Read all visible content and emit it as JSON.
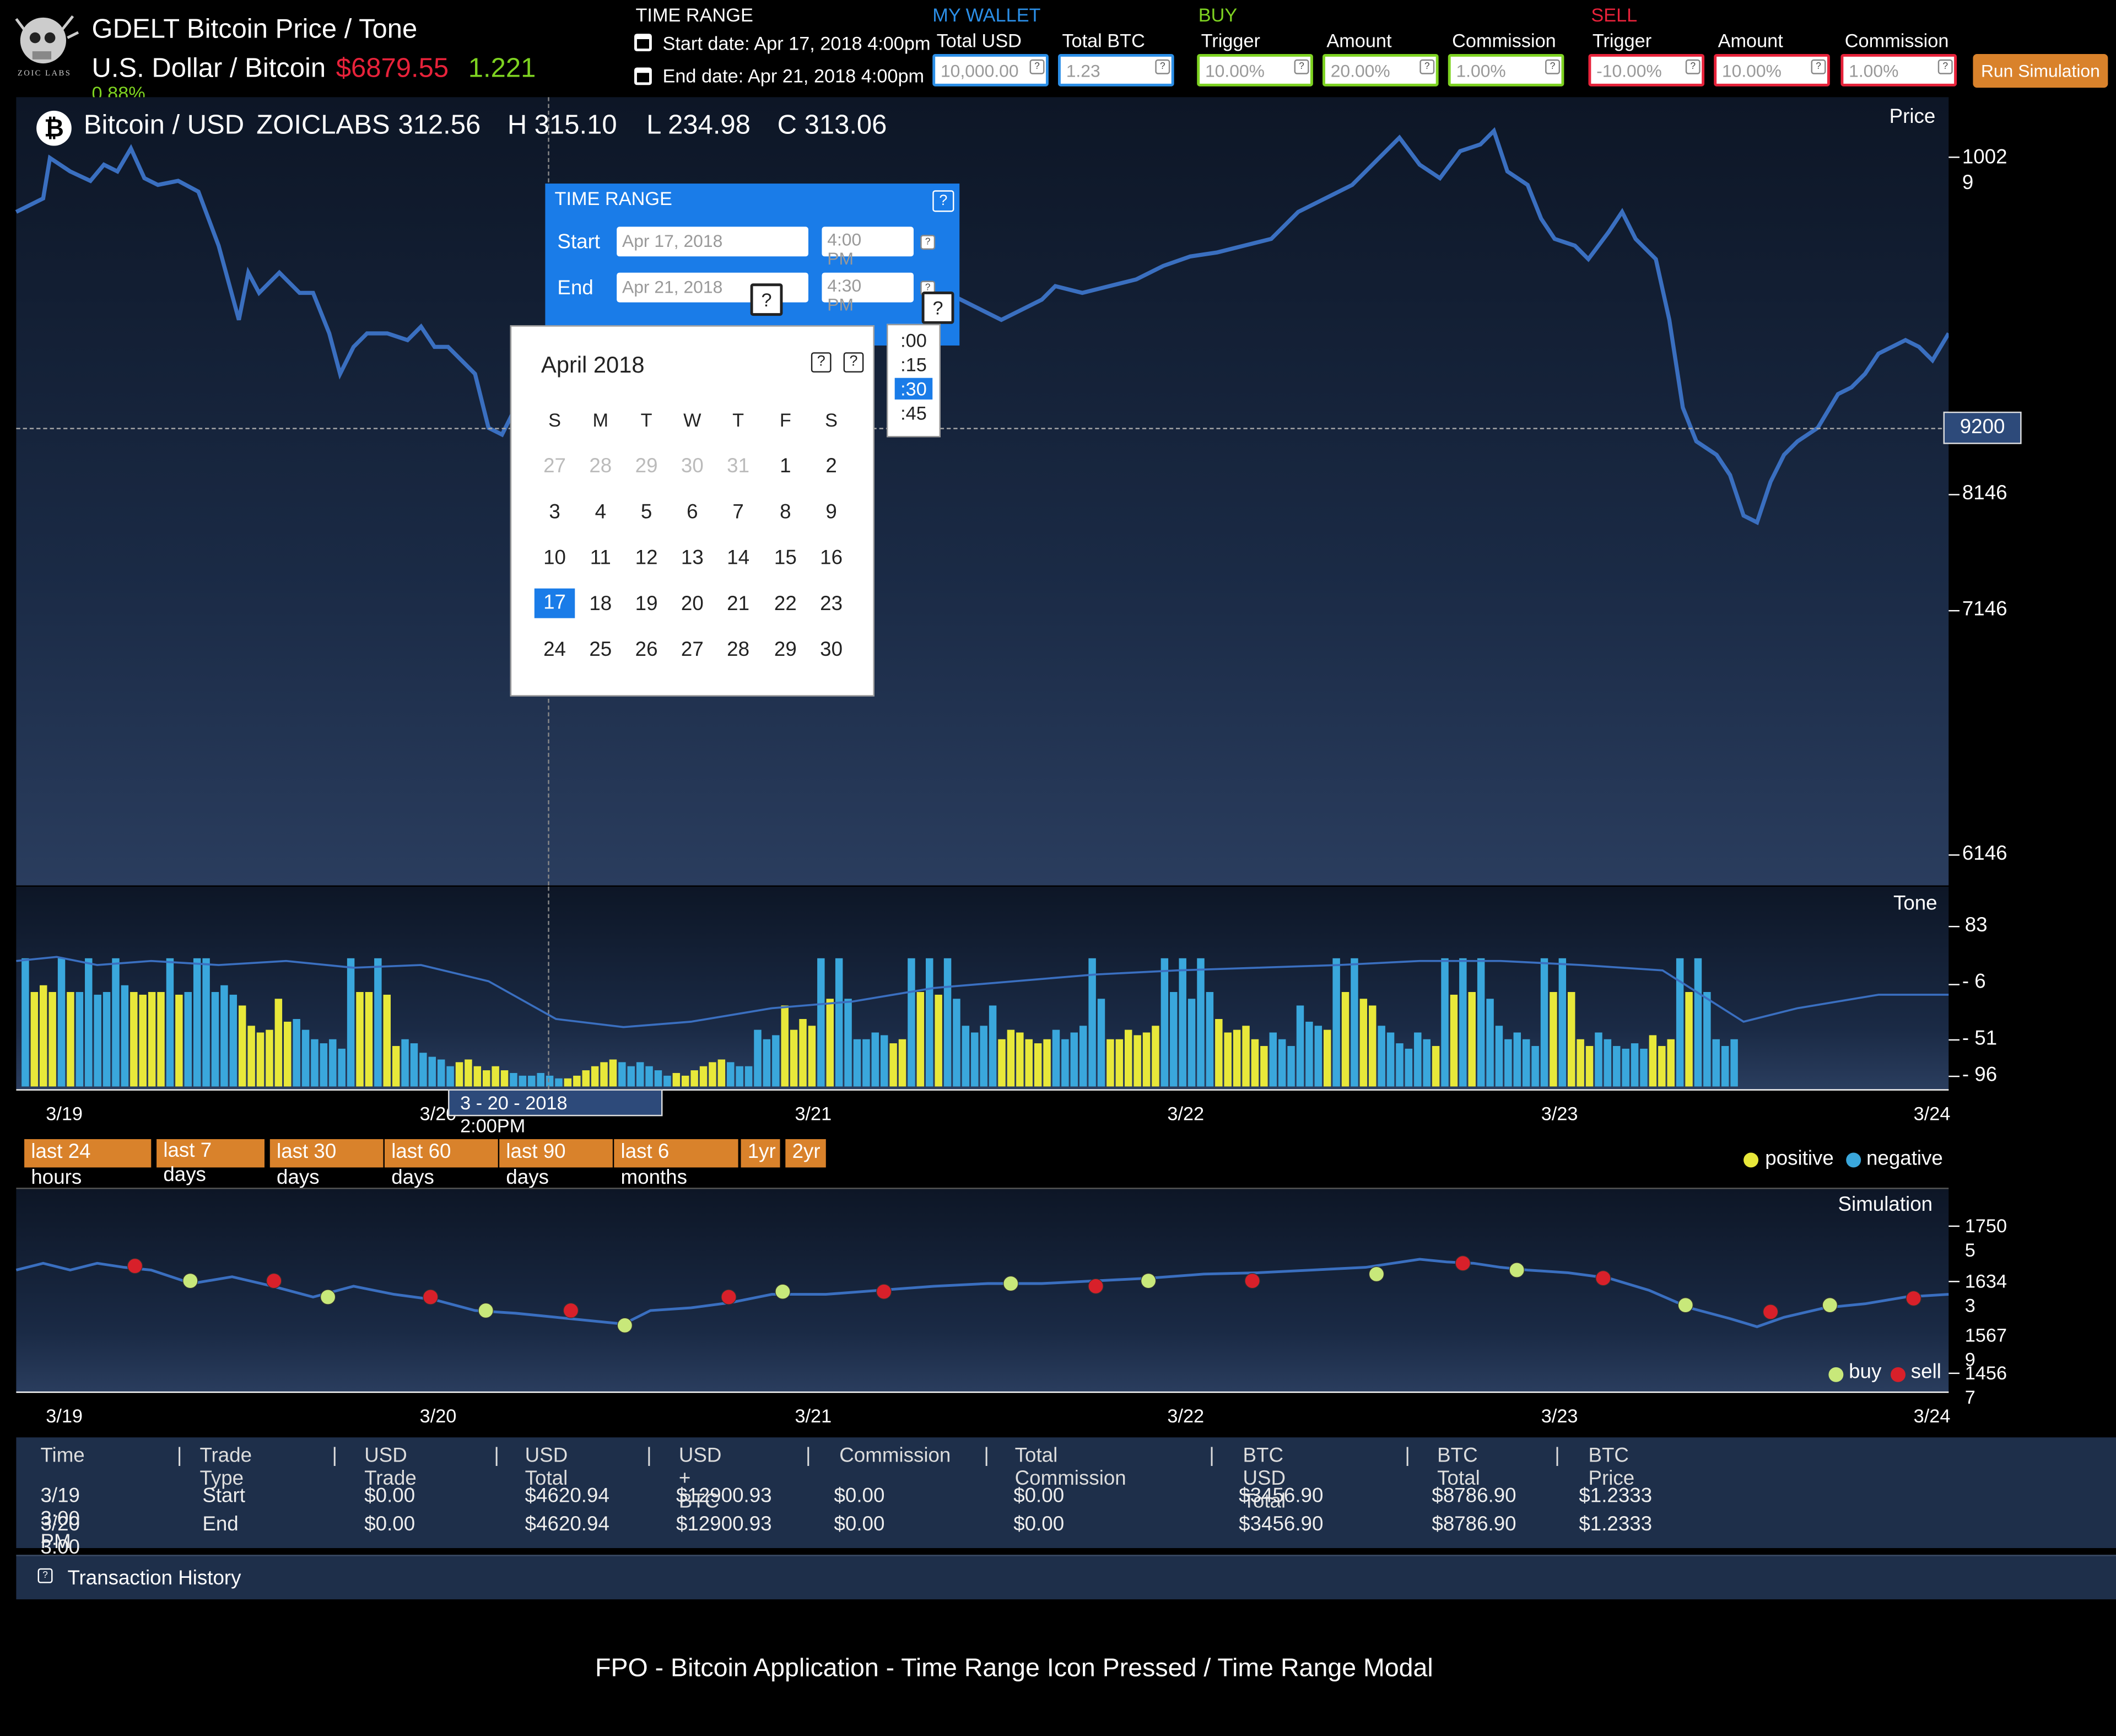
{
  "header": {
    "title": "GDELT Bitcoin Price / Tone",
    "subtitle": "U.S. Dollar / Bitcoin",
    "price": "$6879.55",
    "change": "1.221",
    "percent": "0.88%",
    "logo_text": "ZOIC LABS"
  },
  "time_range": {
    "heading": "TIME RANGE",
    "start": "Start date: Apr 17, 2018 4:00pm",
    "end": "End date: Apr 21, 2018 4:00pm"
  },
  "wallet": {
    "heading": "MY WALLET",
    "total_usd_label": "Total USD",
    "total_usd_value": "10,000.00",
    "total_btc_label": "Total BTC",
    "total_btc_value": "1.23"
  },
  "buy": {
    "heading": "BUY",
    "trigger_label": "Trigger",
    "trigger_value": "10.00%",
    "amount_label": "Amount",
    "amount_value": "20.00%",
    "commission_label": "Commission",
    "commission_value": "1.00%"
  },
  "sell": {
    "heading": "SELL",
    "trigger_label": "Trigger",
    "trigger_value": "-10.00%",
    "amount_label": "Amount",
    "amount_value": "10.00%",
    "commission_label": "Commission",
    "commission_value": "1.00%"
  },
  "run_button": "Run Simulation",
  "ohlc": {
    "pair": "Bitcoin / USD",
    "source": "ZOICLABS",
    "open": "312.56",
    "high": "H 315.10",
    "low": "L 234.98",
    "close": "C 313.06"
  },
  "price_chart": {
    "label": "Price",
    "ticks": [
      "1002\n9",
      "8146",
      "7146",
      "6146"
    ],
    "crosshair_value": "9200"
  },
  "tone_chart": {
    "label": "Tone",
    "ticks": [
      "83",
      "- 6",
      "- 51",
      "- 96"
    ],
    "legend_positive": "positive",
    "legend_negative": "negative",
    "positive_color": "#e8e83a",
    "negative_color": "#3aa7dc"
  },
  "x_dates": [
    "3/19",
    "3/20",
    "3/21",
    "3/22",
    "3/23",
    "3/24"
  ],
  "tooltip": "3 - 20 - 2018\n2:00PM",
  "range_buttons": [
    "last 24 hours",
    "last 7 days",
    "last 30 days",
    "last 60 days",
    "last 90 days",
    "last 6 months",
    "1yr",
    "2yr"
  ],
  "sim_chart": {
    "label": "Simulation",
    "ticks": [
      "1750\n5",
      "1634\n3",
      "1567\n9",
      "1456\n7"
    ],
    "legend_buy": "buy",
    "legend_sell": "sell",
    "buy_color": "#c8e87a",
    "sell_color": "#d8202a"
  },
  "modal": {
    "title": "TIME RANGE",
    "start_label": "Start",
    "start_date": "Apr 17, 2018",
    "start_time": "4:00",
    "start_time_sub": "PM",
    "end_label": "End",
    "end_date": "Apr 21, 2018",
    "end_time": "4:30",
    "end_time_sub": "PM"
  },
  "calendar": {
    "month": "April 2018",
    "weekdays": [
      "S",
      "M",
      "T",
      "W",
      "T",
      "F",
      "S"
    ],
    "weeks": [
      [
        "27",
        "28",
        "29",
        "30",
        "31",
        "1",
        "2"
      ],
      [
        "3",
        "4",
        "5",
        "6",
        "7",
        "8",
        "9"
      ],
      [
        "10",
        "11",
        "12",
        "13",
        "14",
        "15",
        "16"
      ],
      [
        "17",
        "18",
        "19",
        "20",
        "21",
        "22",
        "23"
      ],
      [
        "24",
        "25",
        "26",
        "27",
        "28",
        "29",
        "30"
      ]
    ],
    "selected": "17"
  },
  "minutes_dropdown": {
    "options": [
      ":00",
      ":15",
      ":30",
      ":45"
    ],
    "selected": ":30"
  },
  "table": {
    "headers": [
      "Time",
      "Trade Type",
      "USD Trade",
      "USD Total",
      "USD + BTC",
      "Commission",
      "Total Commission",
      "BTC USD Total",
      "BTC Total",
      "BTC Price"
    ],
    "rows": [
      [
        "3/19 3:00 PM",
        "Start",
        "$0.00",
        "$4620.94",
        "$12900.93",
        "$0.00",
        "$0.00",
        "$3456.90",
        "$8786.90",
        "$1.2333"
      ],
      [
        "3/20 3:00 PM",
        "End",
        "$0.00",
        "$4620.94",
        "$12900.93",
        "$0.00",
        "$0.00",
        "$3456.90",
        "$8786.90",
        "$1.2333"
      ]
    ]
  },
  "transaction_history": "Transaction History",
  "footer_caption": "FPO - Bitcoin Application - Time Range Icon Pressed / Time Range Modal"
}
